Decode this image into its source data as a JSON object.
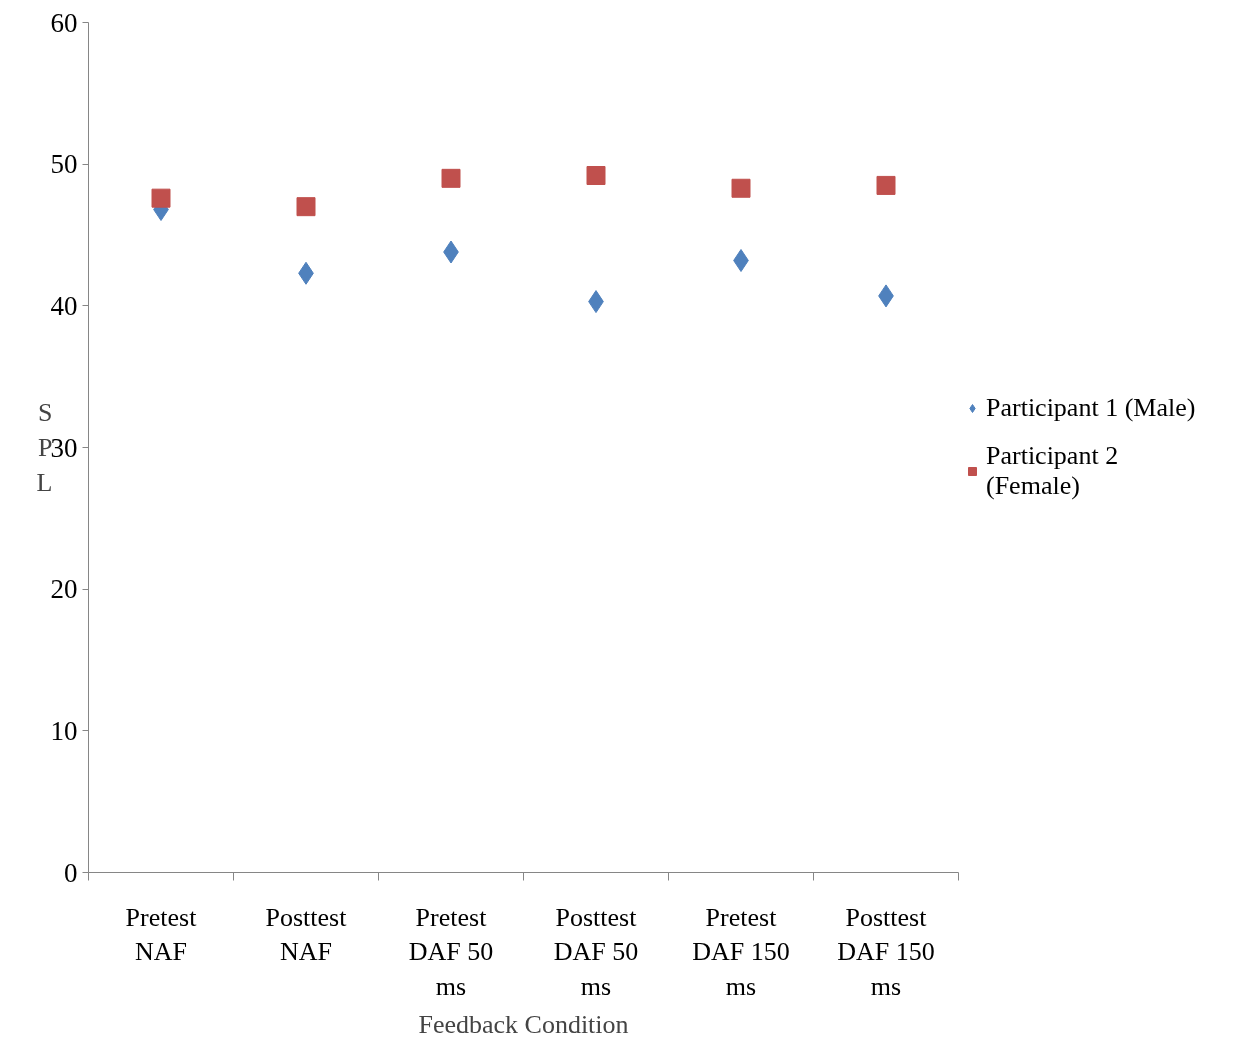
{
  "chart_data": {
    "type": "scatter",
    "xlabel": "Feedback Condition",
    "ylabel": "SPL",
    "categories": [
      "Pretest NAF",
      "Posttest NAF",
      "Pretest DAF 50 ms",
      "Posttest DAF 50 ms",
      "Pretest DAF 150 ms",
      "Posttest DAF 150 ms"
    ],
    "series": [
      {
        "name": "Participant 1 (Male)",
        "color": "#4f81bd",
        "marker": "diamond",
        "values": [
          46.8,
          42.3,
          43.8,
          40.3,
          43.2,
          40.7
        ]
      },
      {
        "name": "Participant 2 (Female)",
        "color": "#c0504d",
        "marker": "square",
        "values": [
          47.6,
          47.0,
          49.0,
          49.2,
          48.3,
          48.5
        ]
      }
    ],
    "ylim": [
      0,
      60
    ],
    "yticks": [
      0,
      10,
      20,
      30,
      40,
      50,
      60
    ],
    "grid": false,
    "legend": "right"
  }
}
